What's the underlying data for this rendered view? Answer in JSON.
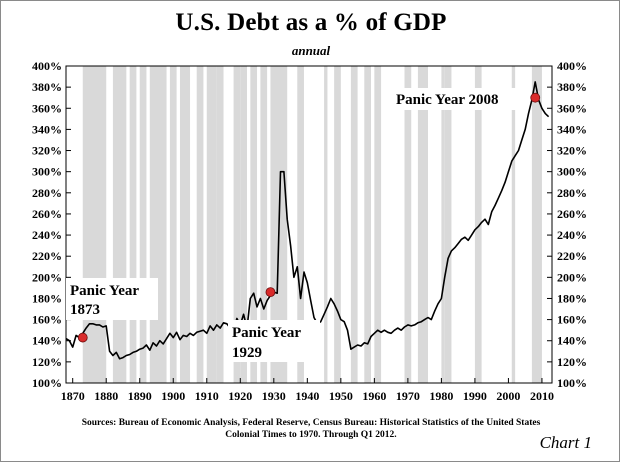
{
  "chart_data": {
    "type": "line",
    "title": "U.S. Debt as a % of GDP",
    "subtitle": "annual",
    "xlim": [
      1868,
      2013
    ],
    "ylim": [
      100,
      400
    ],
    "x_ticks": [
      1870,
      1880,
      1890,
      1900,
      1910,
      1920,
      1930,
      1940,
      1950,
      1960,
      1970,
      1980,
      1990,
      2000,
      2010
    ],
    "y_ticks": [
      100,
      120,
      140,
      160,
      180,
      200,
      220,
      240,
      260,
      280,
      300,
      320,
      340,
      360,
      380,
      400
    ],
    "y_tick_suffix": "%",
    "grid": false,
    "shaded_periods": [
      [
        1873,
        1879
      ],
      [
        1882,
        1885
      ],
      [
        1887,
        1888
      ],
      [
        1890,
        1891
      ],
      [
        1893,
        1894
      ],
      [
        1895,
        1897
      ],
      [
        1899,
        1900
      ],
      [
        1902,
        1904
      ],
      [
        1907,
        1908
      ],
      [
        1910,
        1912
      ],
      [
        1913,
        1914
      ],
      [
        1918,
        1919
      ],
      [
        1920,
        1921
      ],
      [
        1923,
        1924
      ],
      [
        1926,
        1927
      ],
      [
        1929,
        1933
      ],
      [
        1937,
        1938
      ],
      [
        1945,
        1945
      ],
      [
        1948,
        1949
      ],
      [
        1953,
        1954
      ],
      [
        1957,
        1958
      ],
      [
        1960,
        1961
      ],
      [
        1969,
        1970
      ],
      [
        1973,
        1975
      ],
      [
        1980,
        1980
      ],
      [
        1981,
        1982
      ],
      [
        1990,
        1991
      ],
      [
        2001,
        2001
      ],
      [
        2007,
        2009
      ]
    ],
    "series": [
      {
        "x": [
          1868,
          1869,
          1870,
          1871,
          1872,
          1873,
          1874,
          1875,
          1876,
          1877,
          1878,
          1879,
          1880,
          1881,
          1882,
          1883,
          1884,
          1885,
          1886,
          1887,
          1888,
          1889,
          1890,
          1891,
          1892,
          1893,
          1894,
          1895,
          1896,
          1897,
          1898,
          1899,
          1900,
          1901,
          1902,
          1903,
          1904,
          1905,
          1906,
          1907,
          1908,
          1909,
          1910,
          1911,
          1912,
          1913,
          1914,
          1915,
          1916,
          1917,
          1918,
          1919,
          1920,
          1921,
          1922,
          1923,
          1924,
          1925,
          1926,
          1927,
          1928,
          1929,
          1930,
          1931,
          1932,
          1933,
          1934,
          1935,
          1936,
          1937,
          1938,
          1939,
          1940,
          1941,
          1942,
          1943,
          1944,
          1945,
          1946,
          1947,
          1948,
          1949,
          1950,
          1951,
          1952,
          1953,
          1954,
          1955,
          1956,
          1957,
          1958,
          1959,
          1960,
          1961,
          1962,
          1963,
          1964,
          1965,
          1966,
          1967,
          1968,
          1969,
          1970,
          1971,
          1972,
          1973,
          1974,
          1975,
          1976,
          1977,
          1978,
          1979,
          1980,
          1981,
          1982,
          1983,
          1984,
          1985,
          1986,
          1987,
          1988,
          1989,
          1990,
          1991,
          1992,
          1993,
          1994,
          1995,
          1996,
          1997,
          1998,
          1999,
          2000,
          2001,
          2002,
          2003,
          2004,
          2005,
          2006,
          2007,
          2008,
          2009,
          2010,
          2011,
          2012
        ],
        "y": [
          142,
          140,
          134,
          145,
          143,
          147,
          152,
          156,
          156,
          155,
          155,
          153,
          154,
          130,
          126,
          129,
          123,
          124,
          126,
          127,
          129,
          130,
          132,
          133,
          136,
          131,
          138,
          135,
          140,
          137,
          142,
          147,
          143,
          148,
          141,
          145,
          144,
          147,
          145,
          148,
          149,
          150,
          147,
          154,
          150,
          155,
          152,
          157,
          156,
          152,
          150,
          161,
          155,
          165,
          152,
          180,
          185,
          172,
          180,
          170,
          178,
          183,
          186,
          185,
          300,
          300,
          255,
          230,
          200,
          210,
          180,
          205,
          195,
          178,
          162,
          156,
          158,
          165,
          172,
          180,
          175,
          168,
          160,
          158,
          150,
          132,
          134,
          136,
          135,
          138,
          137,
          144,
          147,
          150,
          148,
          150,
          148,
          147,
          150,
          152,
          150,
          153,
          155,
          154,
          155,
          157,
          158,
          160,
          162,
          160,
          168,
          175,
          180,
          200,
          218,
          225,
          228,
          232,
          236,
          238,
          235,
          240,
          245,
          248,
          252,
          255,
          250,
          262,
          268,
          275,
          282,
          290,
          300,
          310,
          315,
          320,
          330,
          340,
          355,
          368,
          385,
          368,
          360,
          355,
          352
        ]
      }
    ],
    "markers": [
      {
        "x": 1873,
        "y": 143
      },
      {
        "x": 1929,
        "y": 186
      },
      {
        "x": 2008,
        "y": 370
      }
    ],
    "annotations": [
      {
        "lines": [
          "Panic Year",
          "1873"
        ]
      },
      {
        "lines": [
          "Panic Year",
          "1929"
        ]
      },
      {
        "lines": [
          "Panic Year 2008"
        ]
      }
    ],
    "source": [
      "Sources: Bureau of Economic Analysis, Federal Reserve, Census Bureau: Historical Statistics of the United States",
      "Colonial Times to 1970.   Through Q1 2012."
    ],
    "chart_label": "Chart 1",
    "colors": {
      "line": "#000000",
      "recession_shade": "#d9d9d9",
      "marker": "#d92b2b"
    }
  }
}
